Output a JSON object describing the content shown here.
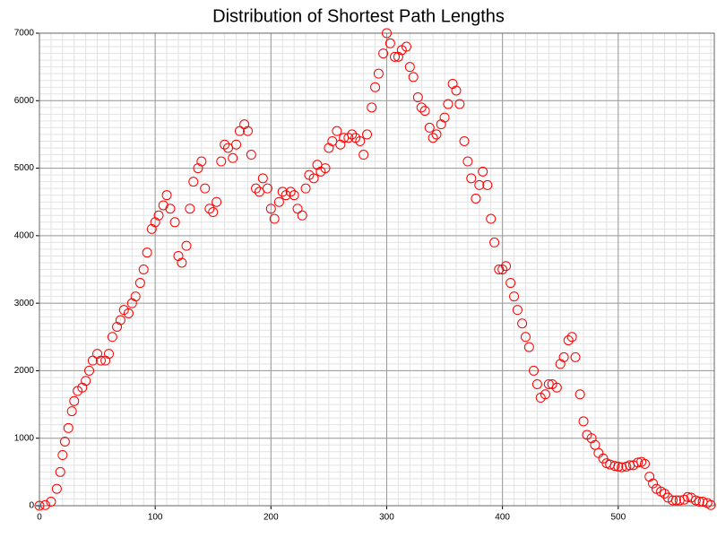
{
  "chart_data": {
    "type": "scatter",
    "title": "Distribution of Shortest Path Lengths",
    "x": [
      0,
      5,
      10,
      15,
      18,
      20,
      22,
      25,
      28,
      30,
      33,
      37,
      40,
      43,
      46,
      50,
      53,
      57,
      60,
      63,
      67,
      70,
      73,
      77,
      80,
      83,
      87,
      90,
      93,
      97,
      100,
      103,
      107,
      110,
      113,
      117,
      120,
      123,
      127,
      130,
      133,
      137,
      140,
      143,
      147,
      150,
      153,
      157,
      160,
      163,
      167,
      170,
      173,
      177,
      180,
      183,
      187,
      190,
      193,
      197,
      200,
      203,
      207,
      210,
      213,
      217,
      220,
      223,
      227,
      230,
      233,
      237,
      240,
      243,
      247,
      250,
      253,
      257,
      260,
      263,
      267,
      270,
      273,
      277,
      280,
      283,
      287,
      290,
      293,
      297,
      300,
      303,
      307,
      310,
      313,
      317,
      320,
      323,
      327,
      330,
      333,
      337,
      340,
      343,
      347,
      350,
      353,
      357,
      360,
      363,
      367,
      370,
      373,
      377,
      380,
      383,
      387,
      390,
      393,
      397,
      400,
      403,
      407,
      410,
      413,
      417,
      420,
      423,
      427,
      430,
      433,
      437,
      440,
      443,
      447,
      450,
      453,
      457,
      460,
      463,
      467,
      470,
      473,
      477,
      480,
      483,
      487,
      490,
      493,
      497,
      500,
      503,
      507,
      510,
      513,
      517,
      520,
      523,
      527,
      530,
      533,
      537,
      540,
      543,
      547,
      550,
      553,
      557,
      560,
      563,
      567,
      570,
      573,
      577,
      580
    ],
    "values": [
      0,
      10,
      60,
      250,
      500,
      750,
      950,
      1150,
      1400,
      1550,
      1700,
      1750,
      1850,
      2000,
      2150,
      2250,
      2150,
      2150,
      2250,
      2500,
      2650,
      2750,
      2900,
      2850,
      3000,
      3100,
      3300,
      3500,
      3750,
      4100,
      4200,
      4300,
      4450,
      4600,
      4400,
      4200,
      3700,
      3600,
      3850,
      4400,
      4800,
      5000,
      5100,
      4700,
      4400,
      4350,
      4500,
      5100,
      5350,
      5300,
      5150,
      5350,
      5550,
      5650,
      5550,
      5200,
      4700,
      4650,
      4850,
      4700,
      4400,
      4250,
      4500,
      4650,
      4600,
      4650,
      4600,
      4400,
      4300,
      4700,
      4900,
      4850,
      5050,
      4950,
      5000,
      5300,
      5400,
      5550,
      5350,
      5450,
      5450,
      5500,
      5450,
      5400,
      5200,
      5500,
      5900,
      6200,
      6400,
      6700,
      7000,
      6850,
      6650,
      6650,
      6750,
      6800,
      6500,
      6350,
      6050,
      5900,
      5850,
      5600,
      5450,
      5500,
      5650,
      5750,
      5950,
      6250,
      6150,
      5950,
      5400,
      5100,
      4850,
      4550,
      4750,
      4950,
      4750,
      4250,
      3900,
      3500,
      3500,
      3550,
      3300,
      3100,
      2900,
      2700,
      2500,
      2350,
      2000,
      1800,
      1600,
      1650,
      1800,
      1800,
      1750,
      2100,
      2200,
      2450,
      2500,
      2200,
      1650,
      1250,
      1050,
      1000,
      900,
      780,
      700,
      630,
      610,
      590,
      580,
      570,
      580,
      600,
      600,
      640,
      650,
      620,
      430,
      330,
      250,
      210,
      180,
      120,
      80,
      80,
      80,
      90,
      130,
      120,
      80,
      60,
      60,
      40,
      10
    ],
    "color": "#ff0000",
    "xlim": [
      0,
      583
    ],
    "ylim": [
      0,
      7000
    ],
    "xticks": [
      0,
      100,
      200,
      300,
      400,
      500
    ],
    "yticks": [
      0,
      1000,
      2000,
      3000,
      4000,
      5000,
      6000,
      7000
    ],
    "grid": true,
    "minor_grid": true
  }
}
